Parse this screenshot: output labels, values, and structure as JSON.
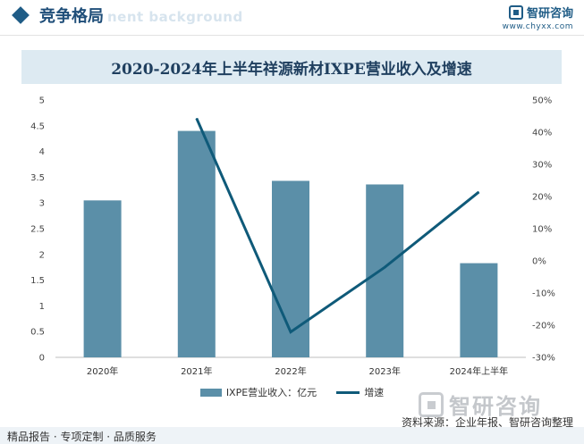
{
  "header": {
    "section_title": "竞争格局",
    "background_word": "nent background",
    "brand_name": "智研咨询",
    "brand_url": "www.chyxx.com"
  },
  "chart_data": {
    "type": "bar+line",
    "title": "2020-2024年上半年祥源新材IXPE营业收入及增速",
    "categories": [
      "2020年",
      "2021年",
      "2022年",
      "2023年",
      "2024年上半年"
    ],
    "series": [
      {
        "name": "IXPE营业收入：亿元",
        "type": "bar",
        "axis": "left",
        "color": "#5b8fa8",
        "values": [
          3.05,
          4.4,
          3.43,
          3.36,
          1.83
        ]
      },
      {
        "name": "增速",
        "type": "line",
        "axis": "right",
        "color": "#0f5a79",
        "values": [
          null,
          44.3,
          -22.1,
          -2.0,
          21.4
        ]
      }
    ],
    "left_axis": {
      "min": 0,
      "max": 5,
      "ticks": [
        0,
        0.5,
        1,
        1.5,
        2,
        2.5,
        3,
        3.5,
        4,
        4.5,
        5
      ],
      "tick_labels": [
        "0",
        "0.5",
        "1",
        "1.5",
        "2",
        "2.5",
        "3",
        "3.5",
        "4",
        "4.5",
        "5"
      ]
    },
    "right_axis": {
      "min": -30,
      "max": 50,
      "ticks": [
        -30,
        -20,
        -10,
        0,
        10,
        20,
        30,
        40,
        50
      ],
      "tick_labels": [
        "-30%",
        "-20%",
        "-10%",
        "0%",
        "10%",
        "20%",
        "30%",
        "40%",
        "50%"
      ]
    },
    "grid": false,
    "legend_position": "bottom"
  },
  "footer": {
    "brand_name": "智研咨询",
    "source": "资料来源：企业年报、智研咨询整理",
    "tagline": "精品报告 · 专项定制 · 品质服务"
  },
  "colors": {
    "bar": "#5b8fa8",
    "line": "#0f5a79",
    "title_band": "#ddeaf2",
    "accent": "#1f5c86"
  }
}
